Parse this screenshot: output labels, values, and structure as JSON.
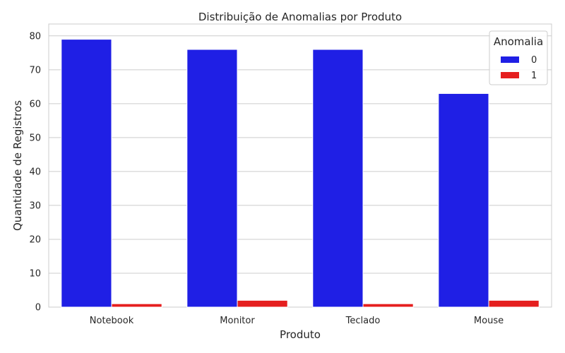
{
  "chart_data": {
    "type": "bar",
    "title": "Distribuição de Anomalias por Produto",
    "xlabel": "Produto",
    "ylabel": "Quantidade de Registros",
    "categories": [
      "Notebook",
      "Monitor",
      "Teclado",
      "Mouse"
    ],
    "series": [
      {
        "name": "0",
        "color": "#1f1fe5",
        "values": [
          79,
          76,
          76,
          63
        ]
      },
      {
        "name": "1",
        "color": "#e51f1f",
        "values": [
          1,
          2,
          1,
          2
        ]
      }
    ],
    "ylim": [
      0,
      83.5
    ],
    "yticks": [
      0,
      10,
      20,
      30,
      40,
      50,
      60,
      70,
      80
    ],
    "grid": true,
    "legend": {
      "title": "Anomalia",
      "position": "top-right"
    }
  }
}
